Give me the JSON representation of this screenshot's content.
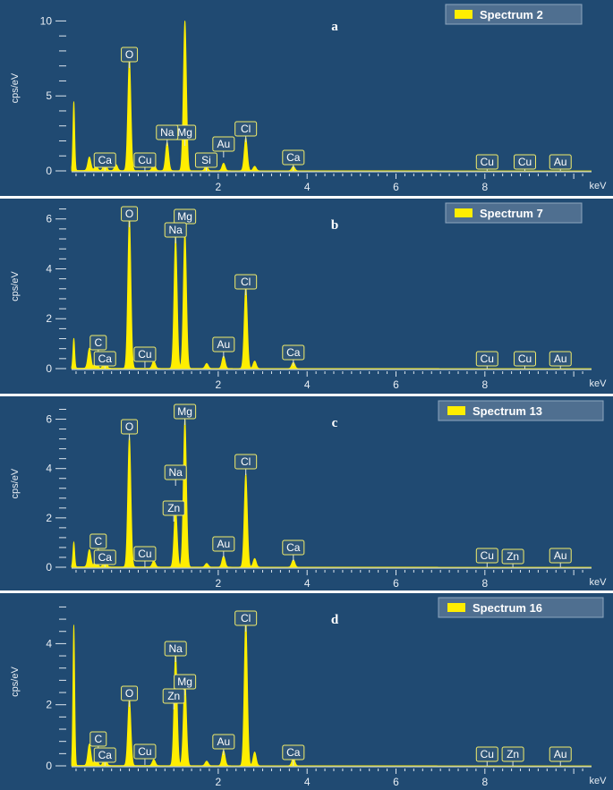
{
  "chart_data": [
    {
      "type": "line",
      "panel_letter": "a",
      "legend": "Spectrum 2",
      "xlabel": "keV",
      "ylabel": "cps/eV",
      "xlim": [
        -1.3,
        10.4
      ],
      "ylim": [
        0,
        10.8
      ],
      "x_ticks": [
        2,
        4,
        6,
        8
      ],
      "y_ticks": [
        0,
        5,
        10
      ],
      "peaks": [
        {
          "x": -1.25,
          "y": 4.6
        },
        {
          "x": -0.9,
          "y": 0.9
        },
        {
          "x": -0.75,
          "y": 0.3
        },
        {
          "x": -0.55,
          "y": 0.6
        },
        {
          "x": -0.3,
          "y": 0.4
        },
        {
          "x": 0.0,
          "y": 7.5
        },
        {
          "x": 0.55,
          "y": 0.5
        },
        {
          "x": 0.85,
          "y": 1.9
        },
        {
          "x": 1.25,
          "y": 10.0
        },
        {
          "x": 1.73,
          "y": 0.3
        },
        {
          "x": 2.12,
          "y": 0.5
        },
        {
          "x": 2.62,
          "y": 2.2
        },
        {
          "x": 2.82,
          "y": 0.3
        },
        {
          "x": 3.69,
          "y": 0.3
        }
      ],
      "elements": [
        {
          "label": "O",
          "x": 0.0
        },
        {
          "label": "Mg",
          "x": 1.25
        },
        {
          "label": "Na",
          "x": 0.85
        },
        {
          "label": "Ca",
          "x": -0.55
        },
        {
          "label": "Cu",
          "x": 0.35
        },
        {
          "label": "Si",
          "x": 1.73
        },
        {
          "label": "Au",
          "x": 2.12
        },
        {
          "label": "Cl",
          "x": 2.62
        },
        {
          "label": "Ca",
          "x": 3.69
        },
        {
          "label": "Cu",
          "x": 8.05
        },
        {
          "label": "Cu",
          "x": 8.9
        },
        {
          "label": "Au",
          "x": 9.7
        }
      ]
    },
    {
      "type": "line",
      "panel_letter": "b",
      "legend": "Spectrum 7",
      "xlabel": "keV",
      "ylabel": "cps/eV",
      "xlim": [
        -1.3,
        10.4
      ],
      "ylim": [
        0,
        6.6
      ],
      "x_ticks": [
        2,
        4,
        6,
        8
      ],
      "y_ticks": [
        0,
        2,
        4,
        6
      ],
      "peaks": [
        {
          "x": -1.25,
          "y": 1.2
        },
        {
          "x": -0.9,
          "y": 0.8
        },
        {
          "x": -0.75,
          "y": 0.3
        },
        {
          "x": -0.55,
          "y": 0.4
        },
        {
          "x": 0.0,
          "y": 6.1
        },
        {
          "x": 0.55,
          "y": 0.3
        },
        {
          "x": 1.04,
          "y": 5.3
        },
        {
          "x": 1.25,
          "y": 5.5
        },
        {
          "x": 1.74,
          "y": 0.2
        },
        {
          "x": 2.12,
          "y": 0.5
        },
        {
          "x": 2.62,
          "y": 3.3
        },
        {
          "x": 2.82,
          "y": 0.3
        },
        {
          "x": 3.69,
          "y": 0.25
        }
      ],
      "elements": [
        {
          "label": "O",
          "x": 0.0
        },
        {
          "label": "Mg",
          "x": 1.25
        },
        {
          "label": "Na",
          "x": 1.04
        },
        {
          "label": "C",
          "x": -0.7
        },
        {
          "label": "Ca",
          "x": -0.55
        },
        {
          "label": "Cu",
          "x": 0.35
        },
        {
          "label": "Au",
          "x": 2.12
        },
        {
          "label": "Cl",
          "x": 2.62
        },
        {
          "label": "Ca",
          "x": 3.69
        },
        {
          "label": "Cu",
          "x": 8.05
        },
        {
          "label": "Cu",
          "x": 8.9
        },
        {
          "label": "Au",
          "x": 9.7
        }
      ]
    },
    {
      "type": "line",
      "panel_letter": "c",
      "legend": "Spectrum 13",
      "xlabel": "keV",
      "ylabel": "cps/eV",
      "xlim": [
        -1.3,
        10.4
      ],
      "ylim": [
        0,
        6.6
      ],
      "x_ticks": [
        2,
        4,
        6,
        8
      ],
      "y_ticks": [
        0,
        2,
        4,
        6
      ],
      "peaks": [
        {
          "x": -1.25,
          "y": 1.0
        },
        {
          "x": -0.9,
          "y": 0.7
        },
        {
          "x": -0.75,
          "y": 0.3
        },
        {
          "x": -0.55,
          "y": 0.35
        },
        {
          "x": 0.0,
          "y": 5.3
        },
        {
          "x": 0.55,
          "y": 0.25
        },
        {
          "x": 1.04,
          "y": 2.4
        },
        {
          "x": 1.25,
          "y": 6.0
        },
        {
          "x": 1.74,
          "y": 0.15
        },
        {
          "x": 2.12,
          "y": 0.45
        },
        {
          "x": 2.62,
          "y": 3.8
        },
        {
          "x": 2.82,
          "y": 0.35
        },
        {
          "x": 3.69,
          "y": 0.3
        }
      ],
      "elements": [
        {
          "label": "O",
          "x": 0.0
        },
        {
          "label": "Mg",
          "x": 1.25
        },
        {
          "label": "Na",
          "x": 1.04
        },
        {
          "label": "Zn",
          "x": 1.0
        },
        {
          "label": "C",
          "x": -0.7
        },
        {
          "label": "Ca",
          "x": -0.55
        },
        {
          "label": "Cu",
          "x": 0.35
        },
        {
          "label": "Au",
          "x": 2.12
        },
        {
          "label": "Cl",
          "x": 2.62
        },
        {
          "label": "Ca",
          "x": 3.69
        },
        {
          "label": "Cu",
          "x": 8.05
        },
        {
          "label": "Zn",
          "x": 8.63
        },
        {
          "label": "Au",
          "x": 9.7
        }
      ]
    },
    {
      "type": "line",
      "panel_letter": "d",
      "legend": "Spectrum 16",
      "xlabel": "keV",
      "ylabel": "cps/eV",
      "xlim": [
        -1.3,
        10.4
      ],
      "ylim": [
        0,
        5.3
      ],
      "x_ticks": [
        2,
        4,
        6,
        8
      ],
      "y_ticks": [
        0,
        2,
        4
      ],
      "peaks": [
        {
          "x": -1.25,
          "y": 4.6
        },
        {
          "x": -0.9,
          "y": 0.7
        },
        {
          "x": -0.75,
          "y": 0.3
        },
        {
          "x": -0.55,
          "y": 0.3
        },
        {
          "x": 0.0,
          "y": 2.2
        },
        {
          "x": 0.55,
          "y": 0.2
        },
        {
          "x": 1.04,
          "y": 3.7
        },
        {
          "x": 1.25,
          "y": 2.8
        },
        {
          "x": 1.74,
          "y": 0.15
        },
        {
          "x": 2.12,
          "y": 0.5
        },
        {
          "x": 2.62,
          "y": 4.8
        },
        {
          "x": 2.82,
          "y": 0.45
        },
        {
          "x": 3.69,
          "y": 0.25
        }
      ],
      "elements": [
        {
          "label": "Cl",
          "x": 2.62
        },
        {
          "label": "Na",
          "x": 1.04
        },
        {
          "label": "Mg",
          "x": 1.25
        },
        {
          "label": "O",
          "x": 0.0
        },
        {
          "label": "Zn",
          "x": 1.0
        },
        {
          "label": "C",
          "x": -0.7
        },
        {
          "label": "Ca",
          "x": -0.55
        },
        {
          "label": "Cu",
          "x": 0.35
        },
        {
          "label": "Au",
          "x": 2.12
        },
        {
          "label": "Ca",
          "x": 3.69
        },
        {
          "label": "Cu",
          "x": 8.05
        },
        {
          "label": "Zn",
          "x": 8.63
        },
        {
          "label": "Au",
          "x": 9.7
        }
      ]
    }
  ]
}
